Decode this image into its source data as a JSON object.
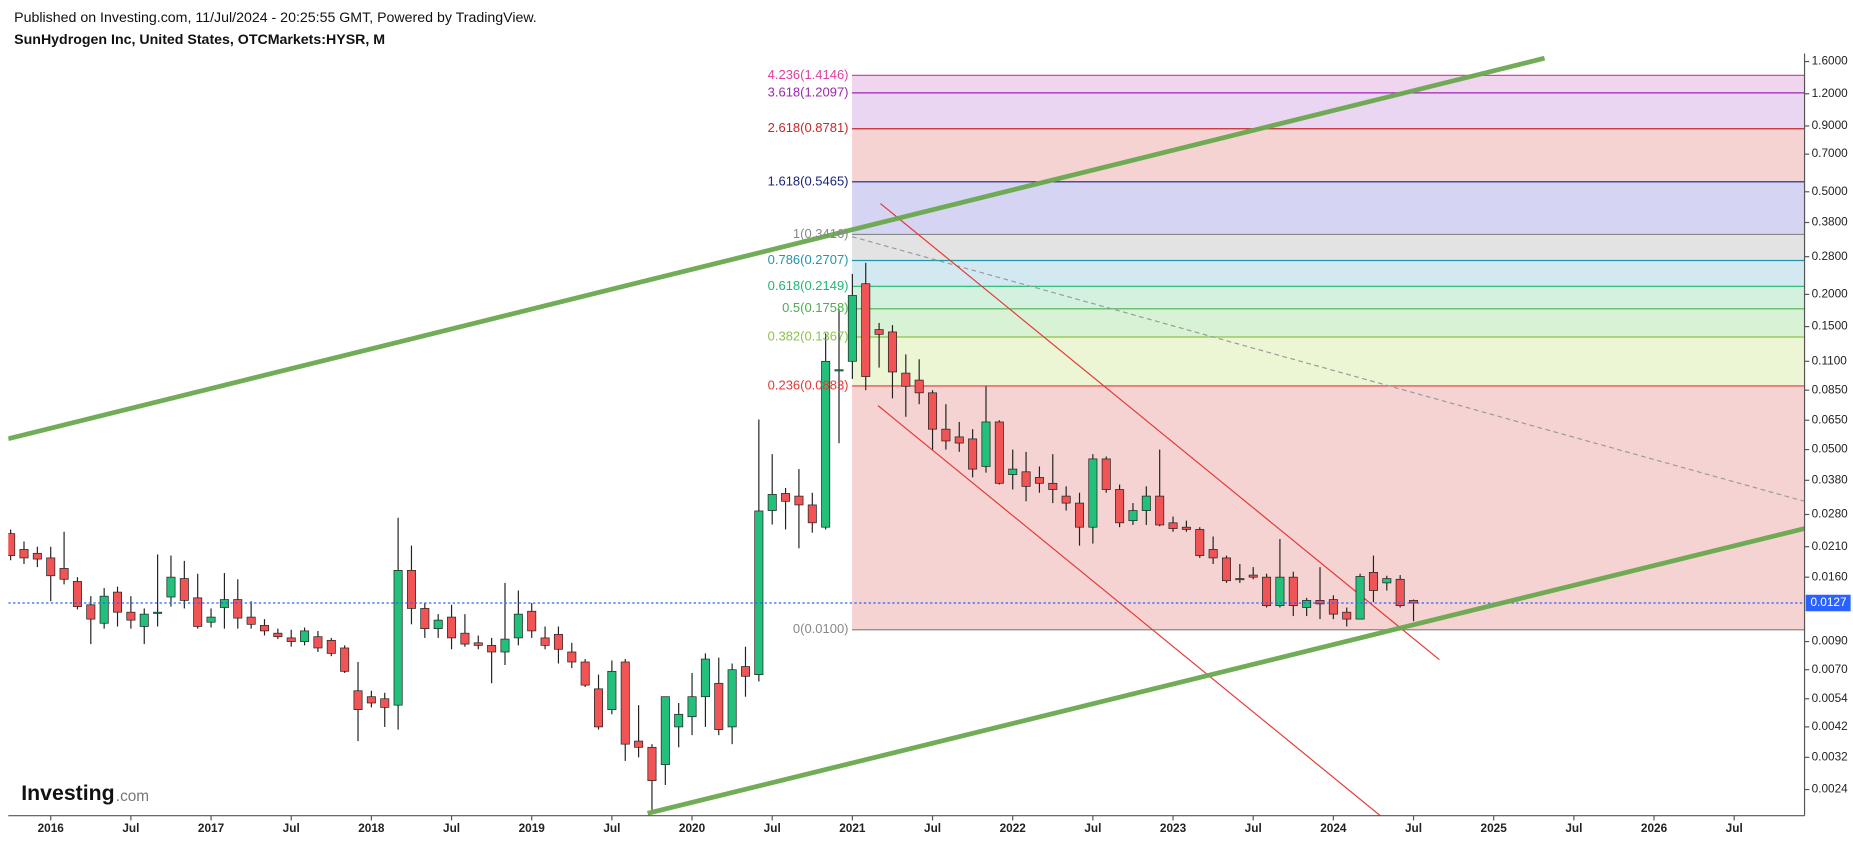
{
  "header": {
    "published": "Published on Investing.com, 11/Jul/2024 - 20:25:55 GMT, Powered by TradingView.",
    "symbol": "SunHydrogen Inc, United States, OTCMarkets:HYSR, M"
  },
  "logo": {
    "main": "Investing",
    "suffix": ".com"
  },
  "chart_data": {
    "type": "candlestick",
    "log_scale": true,
    "up_color": "#22c07a",
    "down_color": "#f05454",
    "x": [
      "2015-10",
      "2015-11",
      "2015-12",
      "2016-01",
      "2016-02",
      "2016-03",
      "2016-04",
      "2016-05",
      "2016-06",
      "2016-07",
      "2016-08",
      "2016-09",
      "2016-10",
      "2016-11",
      "2016-12",
      "2017-01",
      "2017-02",
      "2017-03",
      "2017-04",
      "2017-05",
      "2017-06",
      "2017-07",
      "2017-08",
      "2017-09",
      "2017-10",
      "2017-11",
      "2017-12",
      "2018-01",
      "2018-02",
      "2018-03",
      "2018-04",
      "2018-05",
      "2018-06",
      "2018-07",
      "2018-08",
      "2018-09",
      "2018-10",
      "2018-11",
      "2018-12",
      "2019-01",
      "2019-02",
      "2019-03",
      "2019-04",
      "2019-05",
      "2019-06",
      "2019-07",
      "2019-08",
      "2019-09",
      "2019-10",
      "2019-11",
      "2019-12",
      "2020-01",
      "2020-02",
      "2020-03",
      "2020-04",
      "2020-05",
      "2020-06",
      "2020-07",
      "2020-08",
      "2020-09",
      "2020-10",
      "2020-11",
      "2020-12",
      "2021-01",
      "2021-02",
      "2021-03",
      "2021-04",
      "2021-05",
      "2021-06",
      "2021-07",
      "2021-08",
      "2021-09",
      "2021-10",
      "2021-11",
      "2021-12",
      "2022-01",
      "2022-02",
      "2022-03",
      "2022-04",
      "2022-05",
      "2022-06",
      "2022-07",
      "2022-08",
      "2022-09",
      "2022-10",
      "2022-11",
      "2022-12",
      "2023-01",
      "2023-02",
      "2023-03",
      "2023-04",
      "2023-05",
      "2023-06",
      "2023-07",
      "2023-08",
      "2023-09",
      "2023-10",
      "2023-11",
      "2023-12",
      "2024-01",
      "2024-02",
      "2024-03",
      "2024-04",
      "2024-05",
      "2024-06",
      "2024-07"
    ],
    "open": [
      0.0236,
      0.0205,
      0.0198,
      0.019,
      0.0173,
      0.0154,
      0.0125,
      0.0106,
      0.014,
      0.0117,
      0.0103,
      0.0116,
      0.0134,
      0.0158,
      0.0133,
      0.0107,
      0.0122,
      0.0131,
      0.0112,
      0.0104,
      0.0097,
      0.0093,
      0.009,
      0.0094,
      0.0091,
      0.0085,
      0.0058,
      0.0055,
      0.0054,
      0.0051,
      0.017,
      0.0121,
      0.0101,
      0.0112,
      0.0097,
      0.0089,
      0.0087,
      0.0082,
      0.0093,
      0.0118,
      0.0093,
      0.0096,
      0.0082,
      0.0075,
      0.0059,
      0.0049,
      0.0075,
      0.0037,
      0.0035,
      0.003,
      0.0042,
      0.0046,
      0.0055,
      0.0062,
      0.0042,
      0.0072,
      0.0067,
      0.029,
      0.0338,
      0.033,
      0.0305,
      0.025,
      0.101,
      0.11,
      0.22,
      0.146,
      0.143,
      0.099,
      0.093,
      0.083,
      0.06,
      0.056,
      0.055,
      0.043,
      0.064,
      0.04,
      0.041,
      0.039,
      0.037,
      0.033,
      0.031,
      0.025,
      0.046,
      0.035,
      0.0265,
      0.029,
      0.033,
      0.026,
      0.025,
      0.0245,
      0.0205,
      0.019,
      0.0158,
      0.0163,
      0.016,
      0.0124,
      0.016,
      0.0122,
      0.013,
      0.0131,
      0.0117,
      0.011,
      0.0167,
      0.0152,
      0.0157,
      0.013
    ],
    "high": [
      0.0245,
      0.022,
      0.021,
      0.021,
      0.024,
      0.016,
      0.0135,
      0.0145,
      0.0147,
      0.0135,
      0.0121,
      0.0196,
      0.0194,
      0.0185,
      0.0165,
      0.0121,
      0.0166,
      0.0157,
      0.0129,
      0.011,
      0.0101,
      0.01,
      0.0102,
      0.0099,
      0.0093,
      0.0087,
      0.0075,
      0.0058,
      0.0057,
      0.0272,
      0.0212,
      0.0127,
      0.0115,
      0.0125,
      0.0115,
      0.0095,
      0.0093,
      0.0152,
      0.0142,
      0.0127,
      0.0103,
      0.0103,
      0.0089,
      0.0077,
      0.0067,
      0.0076,
      0.0077,
      0.0051,
      0.0036,
      0.0055,
      0.0052,
      0.0068,
      0.0081,
      0.0078,
      0.0074,
      0.0086,
      0.0654,
      0.048,
      0.0355,
      0.042,
      0.034,
      0.141,
      0.175,
      0.24,
      0.265,
      0.155,
      0.152,
      0.117,
      0.112,
      0.085,
      0.075,
      0.064,
      0.06,
      0.088,
      0.065,
      0.05,
      0.049,
      0.043,
      0.048,
      0.036,
      0.034,
      0.048,
      0.047,
      0.0366,
      0.031,
      0.036,
      0.05,
      0.0275,
      0.0265,
      0.025,
      0.023,
      0.0194,
      0.018,
      0.0175,
      0.0165,
      0.0225,
      0.0168,
      0.0133,
      0.0175,
      0.0136,
      0.0122,
      0.0165,
      0.0194,
      0.0162,
      0.0163,
      0.0131
    ],
    "low": [
      0.0186,
      0.018,
      0.0175,
      0.0129,
      0.015,
      0.012,
      0.0088,
      0.0101,
      0.0103,
      0.0101,
      0.0088,
      0.0103,
      0.0123,
      0.0121,
      0.0101,
      0.0102,
      0.0101,
      0.0101,
      0.0101,
      0.0095,
      0.0092,
      0.0086,
      0.0087,
      0.0082,
      0.0079,
      0.0068,
      0.0037,
      0.005,
      0.0042,
      0.0041,
      0.0105,
      0.0093,
      0.0093,
      0.0084,
      0.0086,
      0.0084,
      0.0062,
      0.0073,
      0.0087,
      0.0093,
      0.0084,
      0.0074,
      0.0071,
      0.006,
      0.0041,
      0.0047,
      0.0031,
      0.0032,
      0.002,
      0.0025,
      0.0035,
      0.0039,
      0.0042,
      0.0039,
      0.0036,
      0.0055,
      0.0063,
      0.0256,
      0.0245,
      0.0207,
      0.0238,
      0.0245,
      0.053,
      0.094,
      0.085,
      0.104,
      0.079,
      0.067,
      0.075,
      0.05,
      0.05,
      0.049,
      0.039,
      0.0407,
      0.0366,
      0.035,
      0.0315,
      0.034,
      0.031,
      0.029,
      0.0212,
      0.0216,
      0.034,
      0.025,
      0.0255,
      0.0255,
      0.0252,
      0.024,
      0.024,
      0.019,
      0.018,
      0.0152,
      0.0152,
      0.0157,
      0.0122,
      0.0122,
      0.0113,
      0.0113,
      0.011,
      0.011,
      0.0103,
      0.011,
      0.0128,
      0.0142,
      0.0122,
      0.0108
    ],
    "close": [
      0.0194,
      0.019,
      0.0188,
      0.0162,
      0.0157,
      0.0123,
      0.011,
      0.0135,
      0.0117,
      0.0109,
      0.0115,
      0.0117,
      0.016,
      0.013,
      0.0103,
      0.0112,
      0.0131,
      0.0111,
      0.0105,
      0.0099,
      0.0094,
      0.009,
      0.0099,
      0.0085,
      0.0081,
      0.0069,
      0.0049,
      0.0052,
      0.005,
      0.017,
      0.0121,
      0.0101,
      0.0109,
      0.0093,
      0.0088,
      0.0087,
      0.0082,
      0.0092,
      0.0115,
      0.0099,
      0.0087,
      0.0084,
      0.0075,
      0.0061,
      0.0042,
      0.0069,
      0.0036,
      0.0035,
      0.0026,
      0.0055,
      0.0047,
      0.0055,
      0.0077,
      0.0041,
      0.007,
      0.0066,
      0.0289,
      0.0335,
      0.0315,
      0.0305,
      0.026,
      0.11,
      0.102,
      0.198,
      0.096,
      0.14,
      0.1,
      0.088,
      0.083,
      0.06,
      0.054,
      0.053,
      0.042,
      0.064,
      0.037,
      0.042,
      0.036,
      0.037,
      0.035,
      0.031,
      0.025,
      0.046,
      0.035,
      0.026,
      0.029,
      0.033,
      0.0255,
      0.0247,
      0.0245,
      0.0194,
      0.019,
      0.0155,
      0.0157,
      0.016,
      0.0124,
      0.016,
      0.0124,
      0.013,
      0.0126,
      0.0115,
      0.011,
      0.0161,
      0.0142,
      0.0158,
      0.0124,
      0.0127
    ],
    "xlim": [
      "2015-10",
      "2026-12"
    ],
    "xticks": [
      {
        "value": "2016-01",
        "label": "2016"
      },
      {
        "value": "2016-07",
        "label": "Jul"
      },
      {
        "value": "2017-01",
        "label": "2017"
      },
      {
        "value": "2017-07",
        "label": "Jul"
      },
      {
        "value": "2018-01",
        "label": "2018"
      },
      {
        "value": "2018-07",
        "label": "Jul"
      },
      {
        "value": "2019-01",
        "label": "2019"
      },
      {
        "value": "2019-07",
        "label": "Jul"
      },
      {
        "value": "2020-01",
        "label": "2020"
      },
      {
        "value": "2020-07",
        "label": "Jul"
      },
      {
        "value": "2021-01",
        "label": "2021"
      },
      {
        "value": "2021-07",
        "label": "Jul"
      },
      {
        "value": "2022-01",
        "label": "2022"
      },
      {
        "value": "2022-07",
        "label": "Jul"
      },
      {
        "value": "2023-01",
        "label": "2023"
      },
      {
        "value": "2023-07",
        "label": "Jul"
      },
      {
        "value": "2024-01",
        "label": "2024"
      },
      {
        "value": "2024-07",
        "label": "Jul"
      },
      {
        "value": "2025-01",
        "label": "2025"
      },
      {
        "value": "2025-07",
        "label": "Jul"
      },
      {
        "value": "2026-01",
        "label": "2026"
      },
      {
        "value": "2026-07",
        "label": "Jul"
      }
    ],
    "ylim": [
      0.0019,
      1.72
    ],
    "yticks": [
      {
        "value": 1.6,
        "label": "1.6000"
      },
      {
        "value": 1.2,
        "label": "1.2000"
      },
      {
        "value": 0.9,
        "label": "0.9000"
      },
      {
        "value": 0.7,
        "label": "0.7000"
      },
      {
        "value": 0.5,
        "label": "0.5000"
      },
      {
        "value": 0.38,
        "label": "0.3800"
      },
      {
        "value": 0.28,
        "label": "0.2800"
      },
      {
        "value": 0.2,
        "label": "0.2000"
      },
      {
        "value": 0.15,
        "label": "0.1500"
      },
      {
        "value": 0.11,
        "label": "0.1100"
      },
      {
        "value": 0.085,
        "label": "0.0850"
      },
      {
        "value": 0.065,
        "label": "0.0650"
      },
      {
        "value": 0.05,
        "label": "0.0500"
      },
      {
        "value": 0.038,
        "label": "0.0380"
      },
      {
        "value": 0.028,
        "label": "0.0280"
      },
      {
        "value": 0.021,
        "label": "0.0210"
      },
      {
        "value": 0.016,
        "label": "0.0160"
      },
      {
        "value": 0.009,
        "label": "0.0090"
      },
      {
        "value": 0.007,
        "label": "0.0070"
      },
      {
        "value": 0.0054,
        "label": "0.0054"
      },
      {
        "value": 0.0042,
        "label": "0.0042"
      },
      {
        "value": 0.0032,
        "label": "0.0032"
      },
      {
        "value": 0.0024,
        "label": "0.0024"
      }
    ],
    "fib_levels": [
      {
        "label": "0(0.0100)",
        "value": 0.01,
        "color": "#888888",
        "fill": "#f5d3d3"
      },
      {
        "label": "0.236(0.0883)",
        "value": 0.0883,
        "color": "#e53935",
        "fill": "#ecf5d4"
      },
      {
        "label": "0.382(0.1367)",
        "value": 0.1367,
        "color": "#8bc34a",
        "fill": "#d7f2d4"
      },
      {
        "label": "0.5(0.1758)",
        "value": 0.1758,
        "color": "#4caf50",
        "fill": "#d2f1df"
      },
      {
        "label": "0.618(0.2149)",
        "value": 0.2149,
        "color": "#22b573",
        "fill": "#d3e9f2"
      },
      {
        "label": "0.786(0.2707)",
        "value": 0.2707,
        "color": "#2196a8",
        "fill": "#e3e3e3"
      },
      {
        "label": "1(0.3416)",
        "value": 0.3416,
        "color": "#888888",
        "fill": "#d5d5f3"
      },
      {
        "label": "1.618(0.5465)",
        "value": 0.5465,
        "color": "#1a237e",
        "fill": "#f5d3d3"
      },
      {
        "label": "2.618(0.8781)",
        "value": 0.8781,
        "color": "#c62828",
        "fill": "#ead5f3"
      },
      {
        "label": "3.618(1.2097)",
        "value": 1.2097,
        "color": "#9c27b0",
        "fill": "#f0d5ee"
      },
      {
        "label": "4.236(1.4146)",
        "value": 1.4146,
        "color": "#e040a0"
      }
    ],
    "last_price": 0.0127,
    "last_price_color": "#2962ff"
  }
}
